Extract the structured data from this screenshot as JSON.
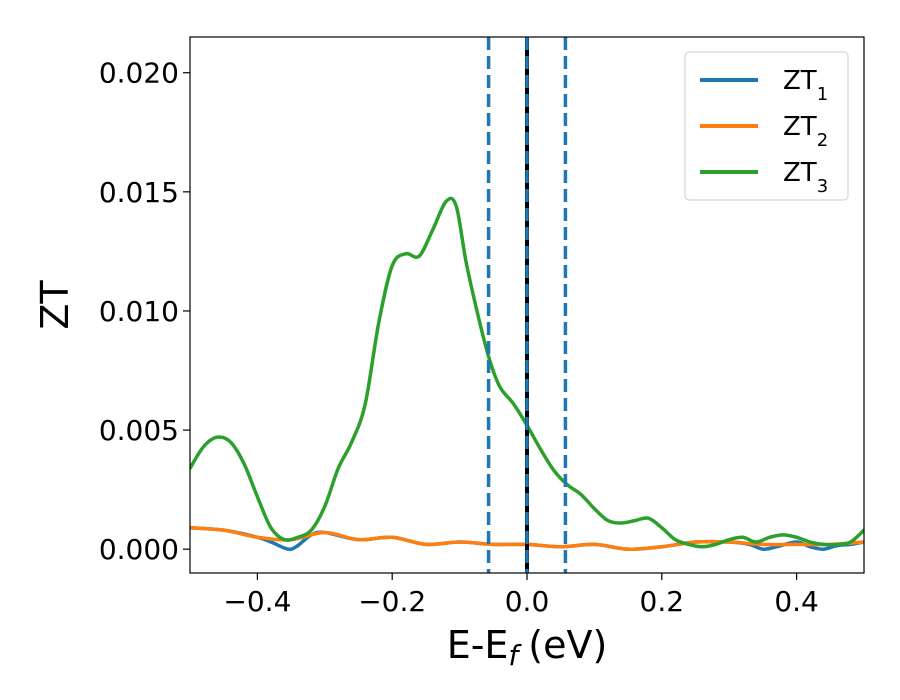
{
  "chart_data": {
    "type": "line",
    "xlabel": "E-E",
    "xlabel_sub": "f",
    "xlabel_unit": "(eV)",
    "ylabel": "ZT",
    "xlim": [
      -0.5,
      0.5
    ],
    "ylim": [
      -0.001,
      0.0215
    ],
    "xticks": [
      -0.4,
      -0.2,
      0.0,
      0.2,
      0.4
    ],
    "xtick_labels": [
      "−0.4",
      "−0.2",
      "0.0",
      "0.2",
      "0.4"
    ],
    "yticks": [
      0.0,
      0.005,
      0.01,
      0.015,
      0.02
    ],
    "ytick_labels": [
      "0.000",
      "0.005",
      "0.010",
      "0.015",
      "0.020"
    ],
    "grid": false,
    "legend_position": "top-right",
    "vlines": [
      {
        "x": -0.057,
        "style": "dashed",
        "color": "#1f77b4"
      },
      {
        "x": 0.0,
        "style": "solid",
        "color": "#000000"
      },
      {
        "x": 0.0,
        "style": "dashed",
        "color": "#1f77b4"
      },
      {
        "x": 0.057,
        "style": "dashed",
        "color": "#1f77b4"
      }
    ],
    "series": [
      {
        "name": "ZT",
        "name_sub": "1",
        "color": "#1f77b4",
        "x": [
          -0.5,
          -0.45,
          -0.4,
          -0.38,
          -0.36,
          -0.35,
          -0.34,
          -0.32,
          -0.3,
          -0.25,
          -0.2,
          -0.15,
          -0.1,
          -0.05,
          0.0,
          0.05,
          0.1,
          0.15,
          0.2,
          0.25,
          0.3,
          0.33,
          0.35,
          0.37,
          0.4,
          0.42,
          0.44,
          0.46,
          0.48,
          0.5
        ],
        "y": [
          0.0009,
          0.0008,
          0.0005,
          0.0003,
          5e-05,
          0.0,
          0.00015,
          0.0006,
          0.0007,
          0.0004,
          0.0005,
          0.0002,
          0.0003,
          0.0002,
          0.0002,
          0.0001,
          0.0002,
          0.0,
          0.0001,
          0.0003,
          0.0003,
          0.0002,
          0.0,
          0.0001,
          0.0003,
          0.0001,
          0.0,
          0.00015,
          0.0002,
          0.0003
        ]
      },
      {
        "name": "ZT",
        "name_sub": "2",
        "color": "#ff7f0e",
        "x": [
          -0.5,
          -0.45,
          -0.4,
          -0.35,
          -0.3,
          -0.25,
          -0.2,
          -0.15,
          -0.1,
          -0.05,
          0.0,
          0.05,
          0.1,
          0.15,
          0.2,
          0.25,
          0.3,
          0.35,
          0.4,
          0.45,
          0.5
        ],
        "y": [
          0.0009,
          0.0008,
          0.0005,
          0.0004,
          0.0007,
          0.0004,
          0.0005,
          0.0002,
          0.0003,
          0.0002,
          0.0002,
          0.0001,
          0.0002,
          0.0,
          0.0001,
          0.0003,
          0.0003,
          0.0002,
          0.0002,
          0.0002,
          0.0003
        ]
      },
      {
        "name": "ZT",
        "name_sub": "3",
        "color": "#2ca02c",
        "x": [
          -0.5,
          -0.48,
          -0.46,
          -0.44,
          -0.42,
          -0.4,
          -0.38,
          -0.36,
          -0.34,
          -0.32,
          -0.3,
          -0.28,
          -0.26,
          -0.24,
          -0.22,
          -0.2,
          -0.18,
          -0.16,
          -0.14,
          -0.12,
          -0.105,
          -0.09,
          -0.07,
          -0.055,
          -0.04,
          -0.02,
          0.0,
          0.02,
          0.04,
          0.06,
          0.08,
          0.1,
          0.12,
          0.14,
          0.16,
          0.18,
          0.2,
          0.22,
          0.24,
          0.26,
          0.28,
          0.3,
          0.32,
          0.34,
          0.36,
          0.38,
          0.4,
          0.42,
          0.44,
          0.46,
          0.48,
          0.5
        ],
        "y": [
          0.0034,
          0.0043,
          0.0047,
          0.0045,
          0.0036,
          0.0022,
          0.0009,
          0.0004,
          0.0005,
          0.0008,
          0.0018,
          0.0034,
          0.0045,
          0.0061,
          0.0095,
          0.0119,
          0.0124,
          0.0123,
          0.0134,
          0.0146,
          0.0144,
          0.012,
          0.0095,
          0.0079,
          0.0068,
          0.0061,
          0.0052,
          0.0042,
          0.0033,
          0.0027,
          0.0023,
          0.0017,
          0.0012,
          0.0011,
          0.0012,
          0.0013,
          0.0009,
          0.0004,
          0.0002,
          0.0001,
          0.0002,
          0.0004,
          0.0005,
          0.0003,
          0.0005,
          0.0006,
          0.0005,
          0.0003,
          0.0002,
          0.0002,
          0.0003,
          0.0008
        ]
      }
    ]
  }
}
